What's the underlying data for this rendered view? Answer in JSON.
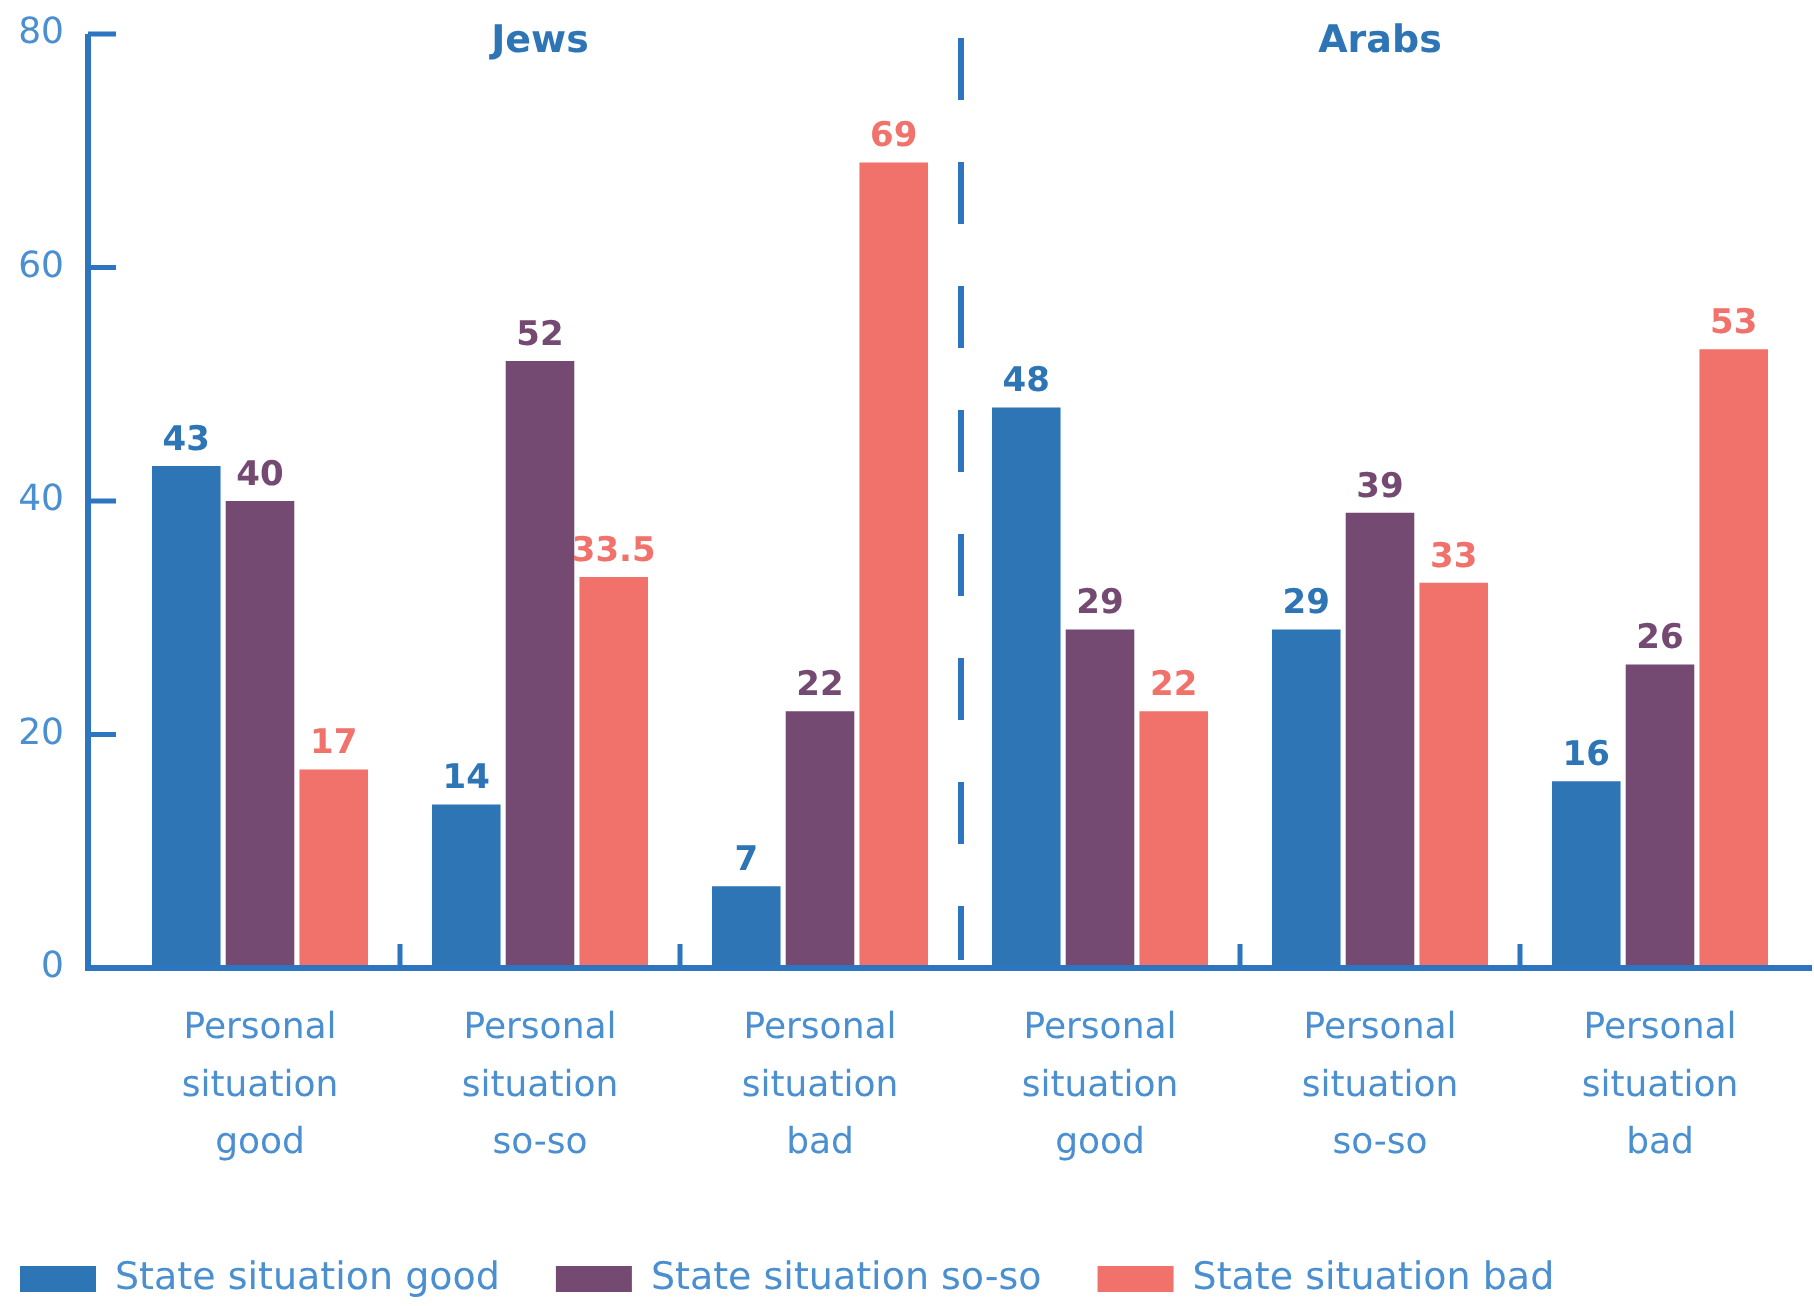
{
  "chart_data": {
    "type": "bar",
    "categories": [
      "Personal situation good",
      "Personal situation so-so",
      "Personal situation bad",
      "Personal situation good",
      "Personal situation so-so",
      "Personal situation bad"
    ],
    "series": [
      {
        "name": "State situation good",
        "color": "#2e75b6",
        "values": [
          43,
          14,
          7,
          48,
          29,
          16
        ]
      },
      {
        "name": "State situation so-so",
        "color": "#744a73",
        "values": [
          40,
          52,
          22,
          29,
          39,
          26
        ]
      },
      {
        "name": "State situation bad",
        "color": "#f1716b",
        "values": [
          17,
          33.5,
          69,
          22,
          33,
          53
        ]
      }
    ],
    "annotations": [
      "Jews",
      "Arabs"
    ],
    "ylim": [
      0,
      80
    ],
    "yticks": [
      0,
      20,
      40,
      60,
      80
    ],
    "data_labels": true,
    "legend": "bottom left"
  }
}
